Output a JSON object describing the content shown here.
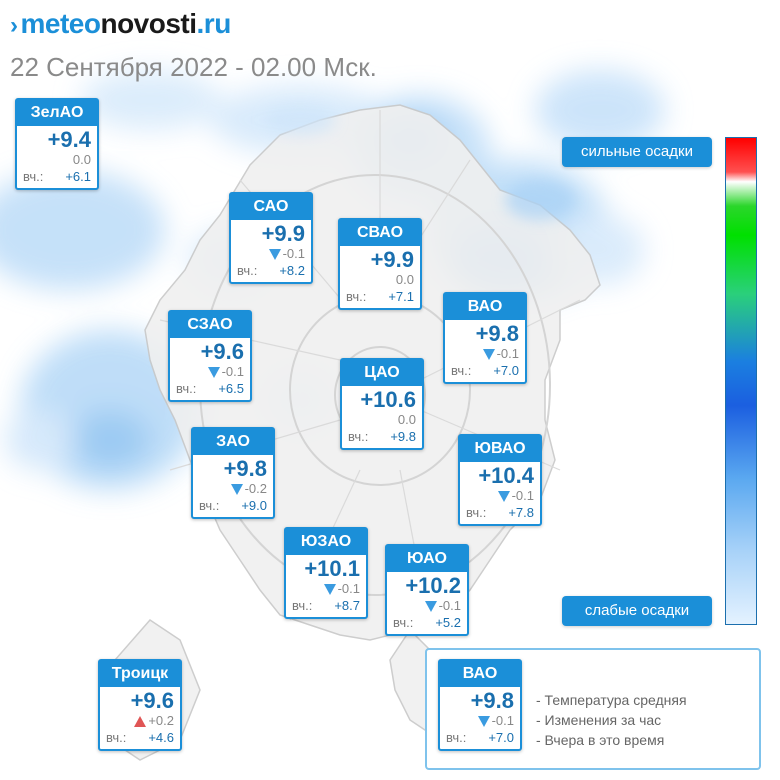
{
  "header": {
    "logo_prefix": "meteo",
    "logo_middle": "novosti",
    "logo_suffix": ".ru",
    "date_time": "22 Сентября 2022 - 02.00 Мск."
  },
  "yesterday_label": "вч.:",
  "districts": [
    {
      "name": "ЗелАО",
      "temp": "+9.4",
      "change": "0.0",
      "trend": "none",
      "yesterday": "+6.1"
    },
    {
      "name": "САО",
      "temp": "+9.9",
      "change": "-0.1",
      "trend": "down",
      "yesterday": "+8.2"
    },
    {
      "name": "СВАО",
      "temp": "+9.9",
      "change": "0.0",
      "trend": "none",
      "yesterday": "+7.1"
    },
    {
      "name": "ВАО",
      "temp": "+9.8",
      "change": "-0.1",
      "trend": "down",
      "yesterday": "+7.0"
    },
    {
      "name": "СЗАО",
      "temp": "+9.6",
      "change": "-0.1",
      "trend": "down",
      "yesterday": "+6.5"
    },
    {
      "name": "ЦАО",
      "temp": "+10.6",
      "change": "0.0",
      "trend": "none",
      "yesterday": "+9.8"
    },
    {
      "name": "ЗАО",
      "temp": "+9.8",
      "change": "-0.2",
      "trend": "down",
      "yesterday": "+9.0"
    },
    {
      "name": "ЮВАО",
      "temp": "+10.4",
      "change": "-0.1",
      "trend": "down",
      "yesterday": "+7.8"
    },
    {
      "name": "ЮЗАО",
      "temp": "+10.1",
      "change": "-0.1",
      "trend": "down",
      "yesterday": "+8.7"
    },
    {
      "name": "ЮАО",
      "temp": "+10.2",
      "change": "-0.1",
      "trend": "down",
      "yesterday": "+5.2"
    },
    {
      "name": "Троицк",
      "temp": "+9.6",
      "change": "+0.2",
      "trend": "up",
      "yesterday": "+4.6"
    }
  ],
  "precip_legend": {
    "strong_label": "сильные осадки",
    "weak_label": "слабые осадки"
  },
  "key": {
    "sample": {
      "name": "ВАО",
      "temp": "+9.8",
      "change": "-0.1",
      "trend": "down",
      "yesterday": "+7.0"
    },
    "items": [
      "- Температура средняя",
      "- Изменения за час",
      "- Вчера в это время"
    ]
  }
}
